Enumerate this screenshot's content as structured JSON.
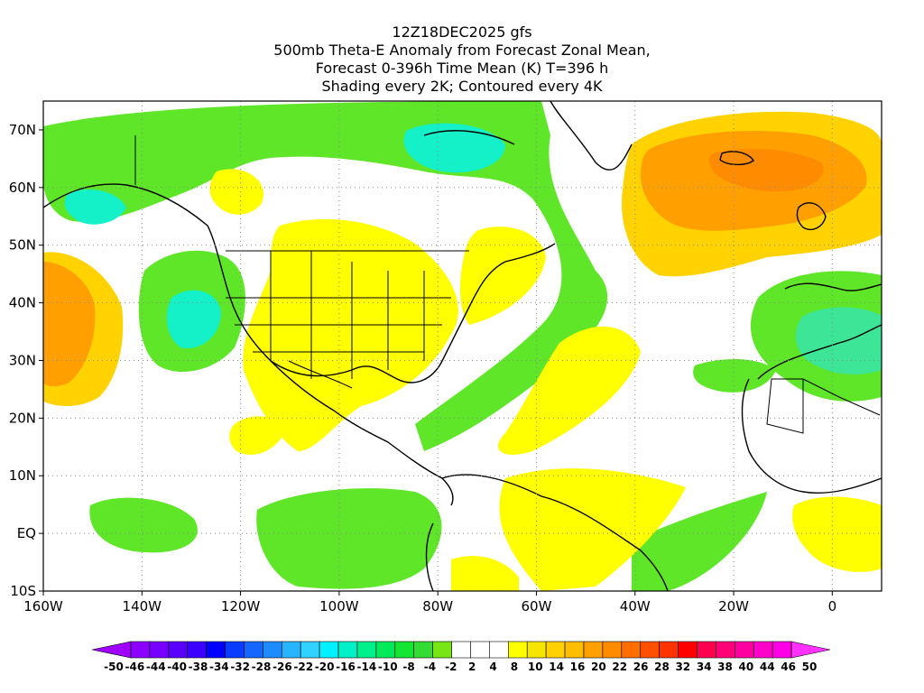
{
  "header": {
    "line1": "12Z18DEC2025 gfs",
    "line2": "500mb Theta-E Anomaly from Forecast Zonal Mean,",
    "line3": "Forecast 0-396h Time Mean (K) T=396 h",
    "line4": "Shading every 2K; Contoured every 4K"
  },
  "map": {
    "lon_labels": [
      "160W",
      "140W",
      "120W",
      "100W",
      "80W",
      "60W",
      "40W",
      "20W",
      "0"
    ],
    "lat_labels": [
      "70N",
      "60N",
      "50N",
      "40N",
      "30N",
      "20N",
      "10N",
      "EQ",
      "10S"
    ],
    "lon_range": [
      -160,
      10
    ],
    "lat_range": [
      -10,
      75
    ],
    "gridlines": "dotted every 20 degrees longitude and 10 degrees latitude"
  },
  "colorbar": {
    "labels": [
      "-50",
      "-46",
      "-44",
      "-40",
      "-38",
      "-34",
      "-32",
      "-28",
      "-26",
      "-22",
      "-20",
      "-16",
      "-14",
      "-10",
      "-8",
      "-4",
      "-2",
      "2",
      "4",
      "8",
      "10",
      "14",
      "16",
      "20",
      "22",
      "26",
      "28",
      "32",
      "34",
      "38",
      "40",
      "44",
      "46",
      "50"
    ],
    "colors": [
      "#a000ff",
      "#8c00ff",
      "#7800ff",
      "#5a00ff",
      "#3c00ff",
      "#0000ff",
      "#0a3cff",
      "#1466ff",
      "#1e8cff",
      "#28b4ff",
      "#32d2ff",
      "#00f0ff",
      "#00f0c8",
      "#00f08c",
      "#00eb5a",
      "#14e632",
      "#32dc32",
      "#78e614",
      "#ffffff",
      "#ffffff",
      "#ffffff",
      "#ffff00",
      "#f5e600",
      "#ffd200",
      "#ffbe00",
      "#ffa000",
      "#ff8c00",
      "#ff6e00",
      "#ff5000",
      "#ff3200",
      "#ff0000",
      "#ff0050",
      "#ff0078",
      "#ff00a0",
      "#ff00c8",
      "#ff00e6",
      "#ff32ff"
    ]
  }
}
